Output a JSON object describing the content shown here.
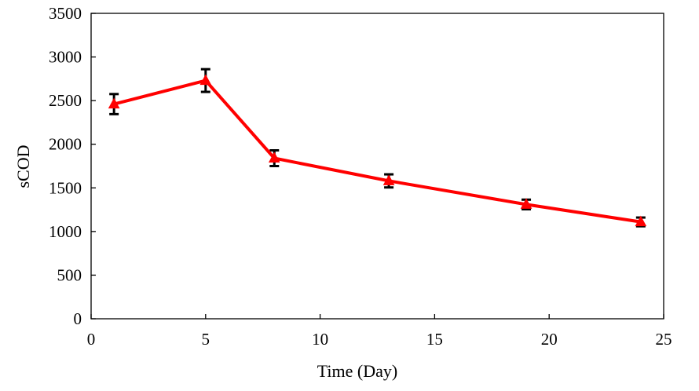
{
  "chart_data": {
    "type": "line",
    "title": "",
    "xlabel": "Time (Day)",
    "ylabel": "sCOD",
    "xlim": [
      0,
      25
    ],
    "ylim": [
      0,
      3500
    ],
    "xticks": [
      0,
      5,
      10,
      15,
      20,
      25
    ],
    "yticks": [
      0,
      500,
      1000,
      1500,
      2000,
      2500,
      3000,
      3500
    ],
    "grid": false,
    "legend": null,
    "series": [
      {
        "name": "sCOD",
        "color": "#ff0000",
        "marker": "triangle",
        "x": [
          1,
          5,
          8,
          13,
          19,
          24
        ],
        "y": [
          2460,
          2730,
          1840,
          1580,
          1310,
          1110
        ],
        "error": [
          115,
          130,
          90,
          75,
          55,
          50
        ],
        "error_color": "#000000"
      }
    ]
  }
}
